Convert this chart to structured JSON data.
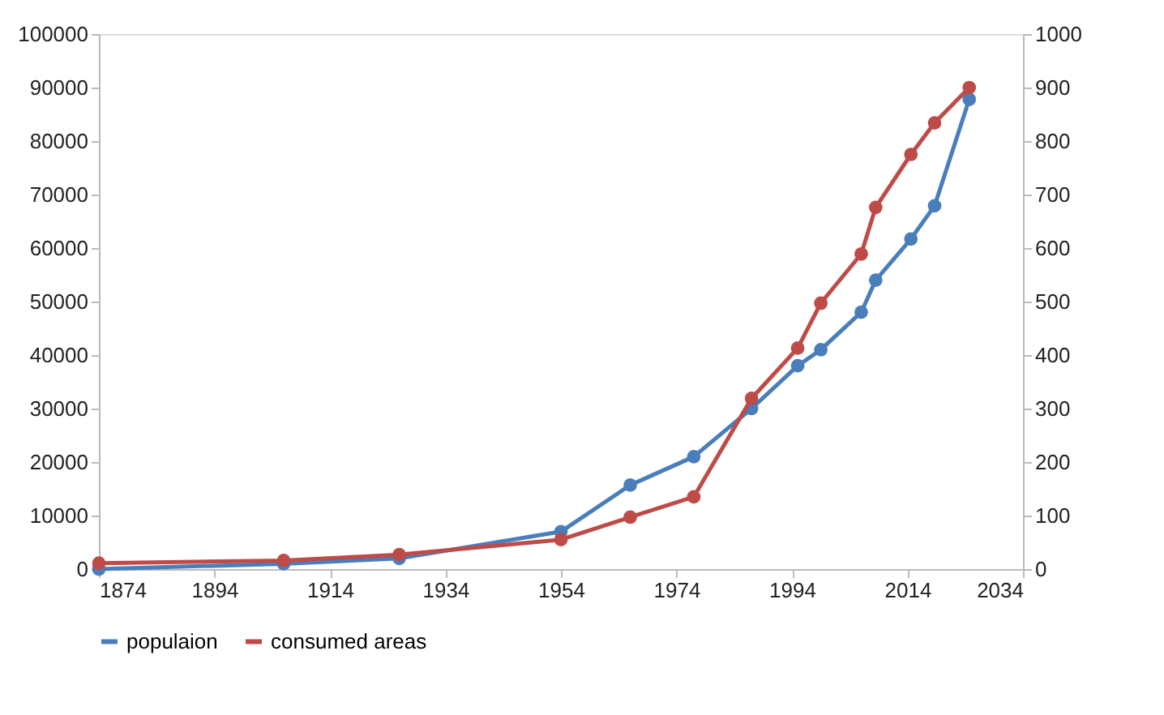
{
  "chart_data": {
    "type": "line",
    "x": [
      1874,
      1906,
      1926,
      1954,
      1966,
      1977,
      1987,
      1995,
      1999,
      2006,
      2008.5,
      2014.6,
      2018.7,
      2024.7
    ],
    "series": [
      {
        "name": "populaion",
        "color": "#4a7ebb",
        "values": [
          0,
          1000,
          2000,
          7000,
          15700,
          21000,
          30000,
          38000,
          41000,
          48000,
          54000,
          61700,
          67900,
          87800
        ]
      },
      {
        "name": "consumed areas",
        "color": "#be4b48",
        "axis": "y2",
        "values": [
          11,
          16,
          27,
          55,
          97,
          135,
          319,
          413,
          497,
          589,
          676,
          775,
          834,
          900
        ]
      }
    ],
    "xlim": [
      1874,
      2034
    ],
    "xticks": [
      1874,
      1894,
      1914,
      1934,
      1954,
      1974,
      1994,
      2014,
      2034
    ],
    "ylim": [
      0,
      100000
    ],
    "yticks": [
      0,
      10000,
      20000,
      30000,
      40000,
      50000,
      60000,
      70000,
      80000,
      90000,
      100000
    ],
    "y2lim": [
      0,
      1000
    ],
    "y2ticks": [
      0,
      100,
      200,
      300,
      400,
      500,
      600,
      700,
      800,
      900,
      1000
    ],
    "grid": false,
    "legend": "bottom",
    "marker": "circle",
    "line_style": "solid"
  }
}
